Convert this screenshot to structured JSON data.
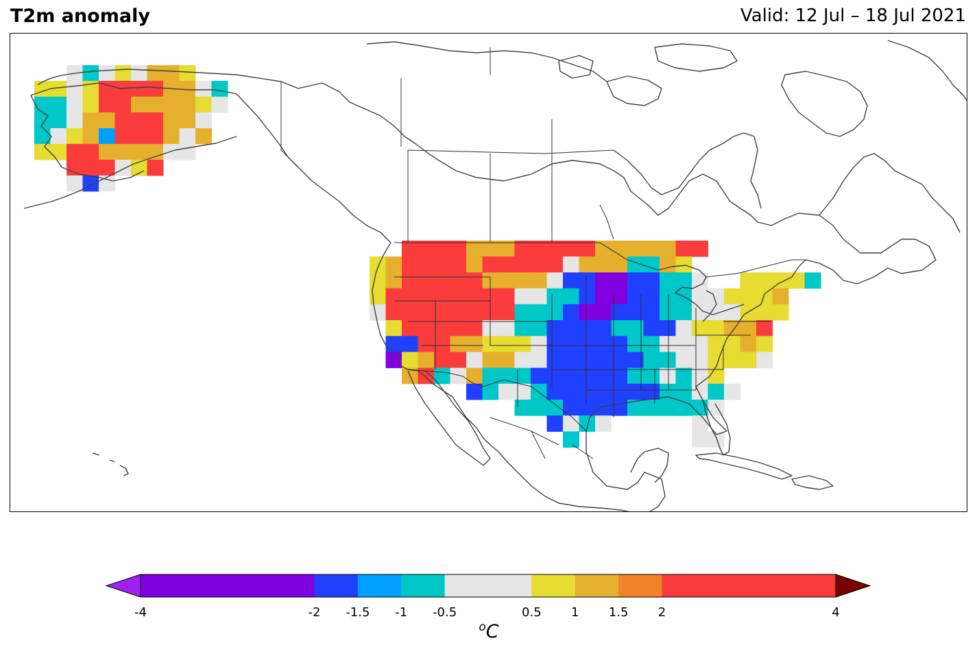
{
  "title": "T2m anomaly",
  "valid": "Valid: 12 Jul – 18 Jul 2021",
  "colorbar": {
    "unit_prefix": "o",
    "unit_main": "C",
    "extend": "both",
    "levels": [
      -4,
      -2,
      -1.5,
      -1,
      -0.5,
      0.5,
      1,
      1.5,
      2,
      4
    ],
    "tick_labels": [
      "-4",
      "-2",
      "-1.5",
      "-1",
      "-0.5",
      "0.5",
      "1",
      "1.5",
      "2",
      "4"
    ],
    "colors": [
      "#8000E0",
      "#2040FF",
      "#00A0FF",
      "#00C8C8",
      "#E6E6E6",
      "#E6DC32",
      "#E6AF2D",
      "#F08228",
      "#FA3C3C"
    ],
    "under_color": "#A020F0",
    "over_color": "#7A0000"
  },
  "colors": {
    "coast": "#404040",
    "border": "#303030"
  },
  "anomaly_classes": {
    "legend_order": [
      "<-2",
      "-2 to -1.5",
      "-1.5 to -1",
      "-1 to -0.5",
      "-0.5 to 0.5",
      "0.5 to 1",
      "1 to 1.5",
      "1.5 to 2",
      "2 to 4"
    ],
    "alaska_grid_rows": [
      "..wcwywooy..",
      "yywyrrrroowc",
      "ccwyrrooooyw",
      "ccwoorrroow.",
      "cwyoirrrowo.",
      "yyrrooooww..",
      "..rrrwyr....",
      "..wbw......."
    ],
    "conus_grid_rows": [
      "..rrrrooorrrrrooooorr.....",
      "yorrrrorrrrrwoooccoy......",
      "yorrrrroooowbbvvbbccw..yyyyc",
      "yrrrrrrrrwwccbvvbbccwwyyyo",
      "wrrrrrrrrcccbvvbbbccwwwyyy",
      ".yrrrrrwwccbbbbccbbwyyoor.",
      ".bbrrooyyywbbbbbccwwwyyoy..",
      ".vyorrwoowwbbbbbbccwwyyyw..",
      "..orcwocccbbbbbbccwcwy....",
      "......bcwwcbbbbbbbccwcw...",
      ".........cccbbbbcccccw....",
      "...........bwcw.....w.....",
      "............c.......ww...."
    ]
  }
}
